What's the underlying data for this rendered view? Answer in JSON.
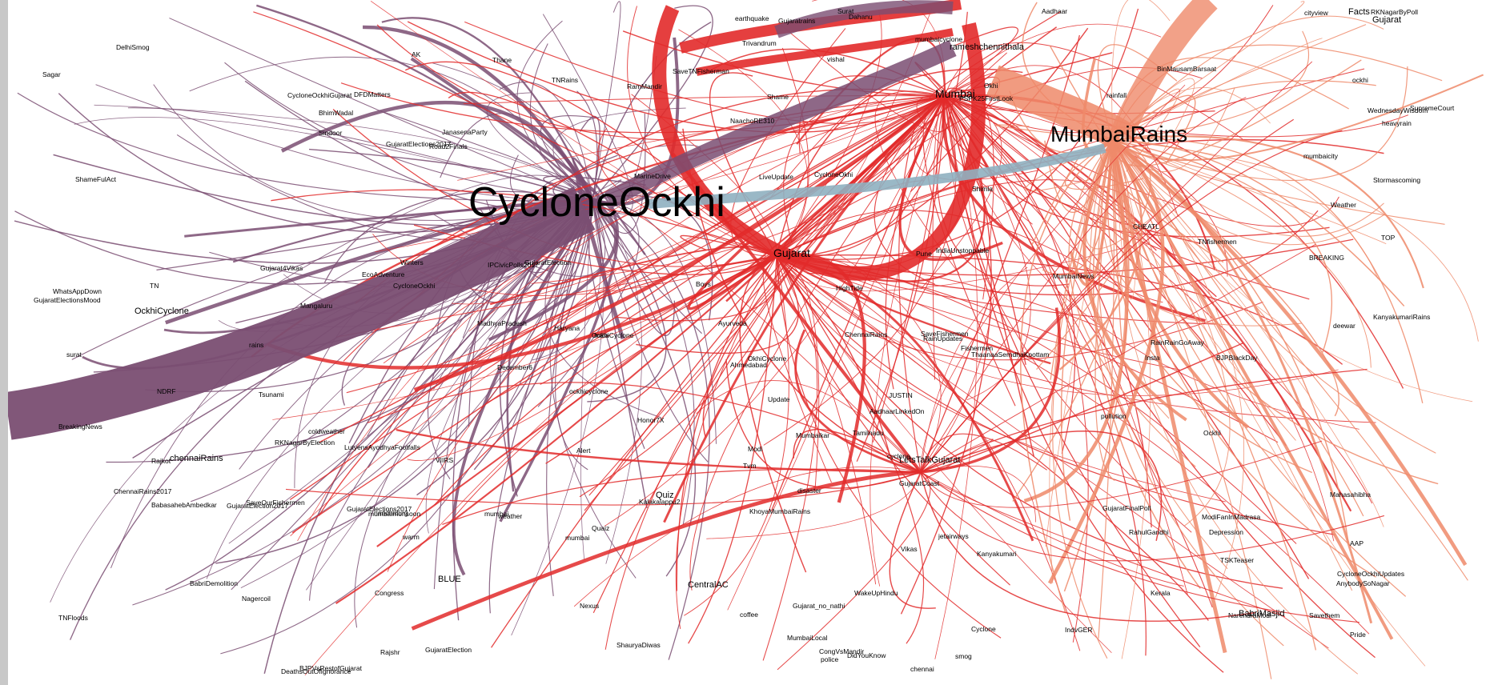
{
  "colors": {
    "purple": "#7a4e72",
    "red": "#e22a2a",
    "salmon": "#ef8a6a",
    "teal": "#8fb0c0"
  },
  "hubs": [
    {
      "id": "CycloneOckhi",
      "label": "CycloneOckhi"
    },
    {
      "id": "MumbaiRains",
      "label": "MumbaiRains"
    },
    {
      "id": "Mumbai",
      "label": "Mumbai"
    },
    {
      "id": "Gujarat",
      "label": "Gujarat"
    }
  ],
  "labels": [
    "BabriMasjid",
    "RKNagarByPoll",
    "LutyensAyodhyaFootfalls",
    "WakeUpHindu",
    "BreakingNews",
    "AAP",
    "AnybodySoNagar",
    "ShameFulAct",
    "Shame",
    "PSPK25FirstLook",
    "ShauryaDiwas",
    "GujaratFinalPoll",
    "Pride",
    "IndiaUnstoppable",
    "BJPBlackDay",
    "LiveUpdate",
    "GujaratElectionsMood",
    "Gujarat",
    "BabriDemolition",
    "jetairways",
    "WednesdayWisdom",
    "ockhi",
    "Gujarat_no_nathi",
    "GujaratElections2017",
    "NaachoRE310",
    "BJPVsRestofGujarat",
    "ModiFanInMadrasa",
    "Vikas",
    "GujaratElection",
    "Update",
    "Rajshr",
    "CongVsMandir",
    "GujaratElections2017",
    "ThaanaaSerndhaKoottam",
    "OckhiCyclone",
    "Modi",
    "Congress",
    "SupremeCourt",
    "TSKTeaser",
    "IPCivicPolls2017",
    "Ockhi",
    "RainRainGoAway",
    "mumbaicyclone",
    "rainfall",
    "RamMandir",
    "smog",
    "Mumbaikar",
    "coldweather",
    "cyclone",
    "Cyclone",
    "ChennaiRains",
    "LetsTalkGujarat",
    "CycloneOkhi",
    "GujaratElection2017",
    "Nexus",
    "December6",
    "AadhaarLinkedOn",
    "India",
    "Mangaluru",
    "Tsunami",
    "RahulGandhi",
    "Tamilnadu",
    "Sagar",
    "heavyrain",
    "OckhiCyclone",
    "AK",
    "WhatsAppDown",
    "Winters",
    "Facts",
    "HighTide",
    "Weather",
    "cityview",
    "MarineDrive",
    "Honor7X",
    "DelhiSmog",
    "Aadhaar",
    "GujaratCoast",
    "ockhicyclone",
    "rains",
    "MadhyaPradesh",
    "BabasahebAmbedkar",
    "ChennaiRains2017",
    "CycloneOckhi",
    "Surat",
    "Ahmedabad",
    "CentralAC",
    "surat",
    "TNRains",
    "Stormascoming",
    "police",
    "Gujarat4Vikas",
    "TN",
    "Kanyakumari",
    "NDRF",
    "Kerala",
    "SaveFishermen",
    "chennai",
    "EcoAdventure",
    "Mahasahibha",
    "NarendraModi",
    "GujaratElection",
    "Ayurveda",
    "BLUE",
    "Haryana",
    "DeathsOutOfIgnorance",
    "Tvm",
    "KhoyaMumbaiRains",
    "Rajkot",
    "RKNagarByElection",
    "Fishermen",
    "pollution",
    "Thane",
    "Quaiz",
    "vishal",
    "Nagercoil",
    "TNfishermen",
    "SaveOurFishermen",
    "Trivandrum",
    "BhimWadal",
    "rameshchennithala",
    "KanyakumariRains",
    "BREAKING",
    "CycloneOckhiGujarat",
    "Shimla",
    "mumbai",
    "OkhiCyclone",
    "JanasenaParty",
    "weather",
    "Dahanu",
    "BinMausamBarsaat",
    "warm",
    "coffee",
    "MumbaiLocal",
    "Gujaratrains",
    "Boys",
    "Pune",
    "Quiz",
    "DidYouKnow",
    "MumbaiNews",
    "TOP",
    "Insta",
    "Kalakalappu2",
    "mumbai",
    "deewar",
    "CHEATL",
    "IndvGER",
    "earthquake",
    "Road2Finals",
    "Sindoor",
    "VIIRS",
    "Savethem",
    "JUSTIN",
    "SaveTNFisherman",
    "chennaiRains",
    "disaster",
    "Alert",
    "Okhi",
    "TNFloods",
    "Depression",
    "DFDMatters",
    "CycloneOckhiUpdates",
    "RainUpdates",
    "nandhidurg",
    "mumbaicity",
    "mumbaimonsoon"
  ]
}
